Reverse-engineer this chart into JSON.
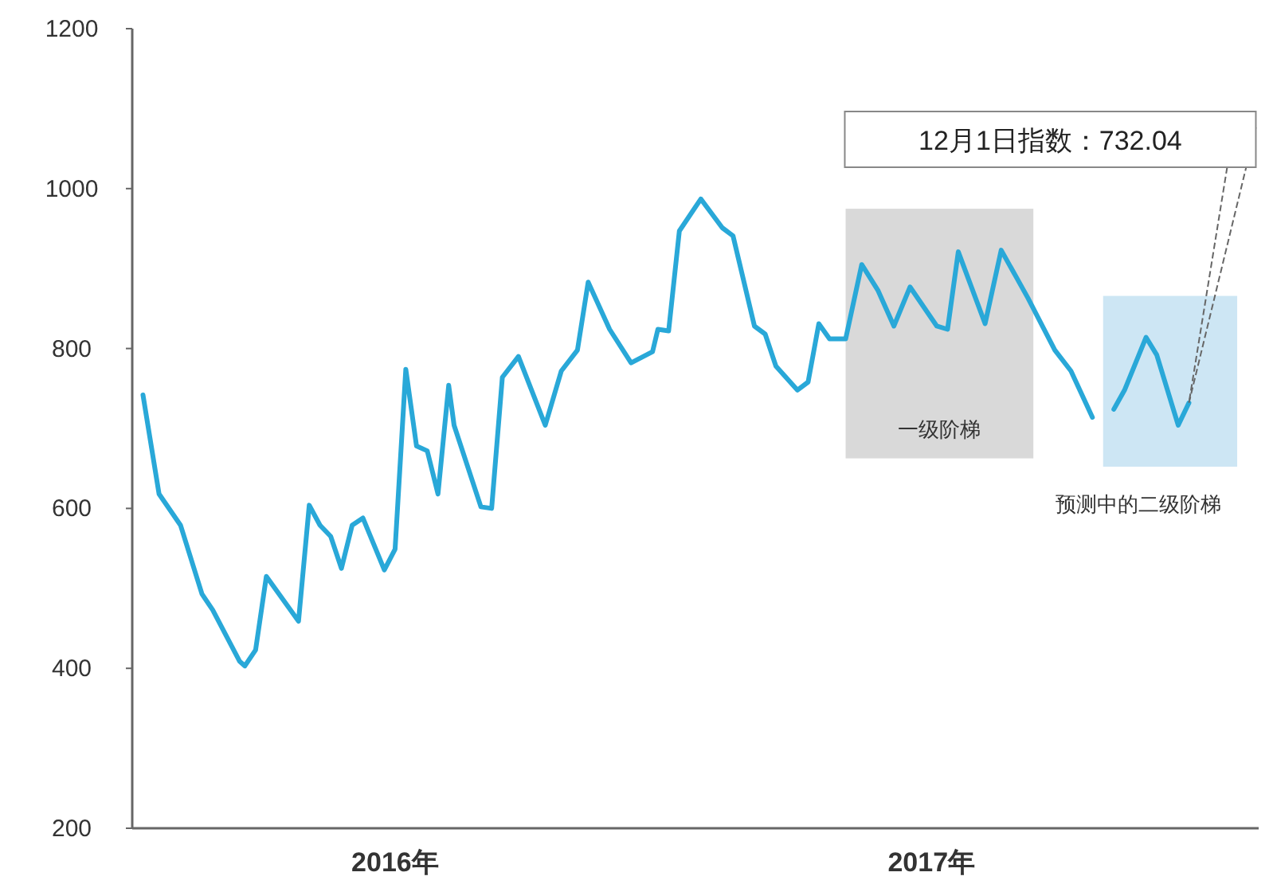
{
  "chart_data": {
    "type": "line",
    "xlim": [
      2015.51,
      2017.61
    ],
    "xticks": [
      {
        "value": 2016,
        "label": "2016年"
      },
      {
        "value": 2017,
        "label": "2017年"
      }
    ],
    "ylim": [
      200,
      1200
    ],
    "yticks": [
      200,
      400,
      600,
      800,
      1000,
      1200
    ],
    "series": [
      {
        "color": "#29a8d8",
        "x": [
          2015.53,
          2015.56,
          2015.6,
          2015.64,
          2015.66,
          2015.71,
          2015.72,
          2015.74,
          2015.76,
          2015.82,
          2015.84,
          2015.86,
          2015.88,
          2015.9,
          2015.92,
          2015.94,
          2015.98,
          2016.0,
          2016.02,
          2016.04,
          2016.06,
          2016.08,
          2016.1,
          2016.11,
          2016.16,
          2016.18,
          2016.2,
          2016.23,
          2016.28,
          2016.31,
          2016.34,
          2016.36,
          2016.4,
          2016.44,
          2016.48,
          2016.49,
          2016.51,
          2016.53,
          2016.57,
          2016.61,
          2016.63,
          2016.67,
          2016.69,
          2016.71,
          2016.75,
          2016.77,
          2016.79,
          2016.81,
          2016.84,
          2016.87,
          2016.9,
          2016.93,
          2016.96,
          2017.01,
          2017.03,
          2017.05,
          2017.1,
          2017.13,
          2017.18,
          2017.23,
          2017.26,
          2017.3
        ],
        "values": [
          742,
          618,
          579,
          493,
          473,
          409,
          403,
          423,
          515,
          459,
          604,
          579,
          565,
          525,
          579,
          588,
          523,
          549,
          774,
          678,
          672,
          618,
          754,
          704,
          602,
          600,
          764,
          790,
          704,
          772,
          798,
          883,
          824,
          782,
          796,
          824,
          822,
          947,
          987,
          951,
          941,
          828,
          818,
          778,
          748,
          758,
          831,
          812,
          812,
          905,
          873,
          828,
          877,
          828,
          824,
          921,
          831,
          923,
          863,
          798,
          772,
          714
        ]
      },
      {
        "color": "#29a8d8",
        "x": [
          2017.34,
          2017.36,
          2017.4,
          2017.42,
          2017.46,
          2017.48
        ],
        "values": [
          724,
          748,
          814,
          792,
          704,
          732.04
        ]
      }
    ],
    "bands": [
      {
        "axis": "x",
        "from": 2016.84,
        "to": 2017.19,
        "label": "一级阶梯",
        "color": "#d9d9d9"
      },
      {
        "axis": "x",
        "from": 2017.32,
        "to": 2017.57,
        "label": "预测中的二级阶梯",
        "color": "#cde6f4"
      }
    ],
    "annotations": [
      "12月1日指数：732.04"
    ]
  }
}
